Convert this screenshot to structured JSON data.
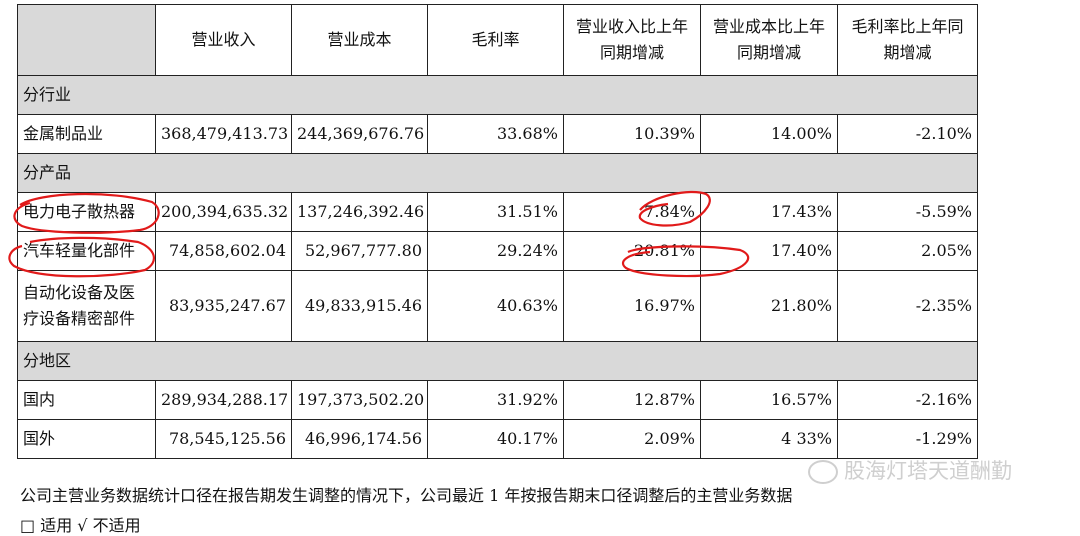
{
  "table": {
    "headers": [
      "营业收入",
      "营业成本",
      "毛利率",
      "营业收入比上年同期增减",
      "营业成本比上年同期增减",
      "毛利率比上年同期增减"
    ],
    "header_lines": [
      [
        "营业收入"
      ],
      [
        "营业成本"
      ],
      [
        "毛利率"
      ],
      [
        "营业收入比上年",
        "同期增减"
      ],
      [
        "营业成本比上年",
        "同期增减"
      ],
      [
        "毛利率比上年同",
        "期增减"
      ]
    ],
    "sections": [
      {
        "title": "分行业",
        "rows": [
          {
            "label": "金属制品业",
            "values": [
              "368,479,413.73",
              "244,369,676.76",
              "33.68%",
              "10.39%",
              "14.00%",
              "-2.10%"
            ]
          }
        ]
      },
      {
        "title": "分产品",
        "rows": [
          {
            "label": "电力电子散热器",
            "values": [
              "200,394,635.32",
              "137,246,392.46",
              "31.51%",
              "7.84%",
              "17.43%",
              "-5.59%"
            ]
          },
          {
            "label": "汽车轻量化部件",
            "values": [
              "74,858,602.04",
              "52,967,777.80",
              "29.24%",
              "20.81%",
              "17.40%",
              "2.05%"
            ]
          },
          {
            "label_lines": [
              "自动化设备及医",
              "疗设备精密部件"
            ],
            "values": [
              "83,935,247.67",
              "49,833,915.46",
              "40.63%",
              "16.97%",
              "21.80%",
              "-2.35%"
            ]
          }
        ]
      },
      {
        "title": "分地区",
        "rows": [
          {
            "label": "国内",
            "values": [
              "289,934,288.17",
              "197,373,502.20",
              "31.92%",
              "12.87%",
              "16.57%",
              "-2.16%"
            ]
          },
          {
            "label": "国外",
            "values": [
              "78,545,125.56",
              "46,996,174.56",
              "40.17%",
              "2.09%",
              "4 33%",
              "-1.29%"
            ]
          }
        ]
      }
    ]
  },
  "footnote": "公司主营业务数据统计口径在报告期发生调整的情况下，公司最近 1 年按报告期末口径调整后的主营业务数据",
  "footnote2": "□ 适用 √ 不适用",
  "watermark": "股海灯塔天道酬勤",
  "annotation_color": "#e11a1a"
}
